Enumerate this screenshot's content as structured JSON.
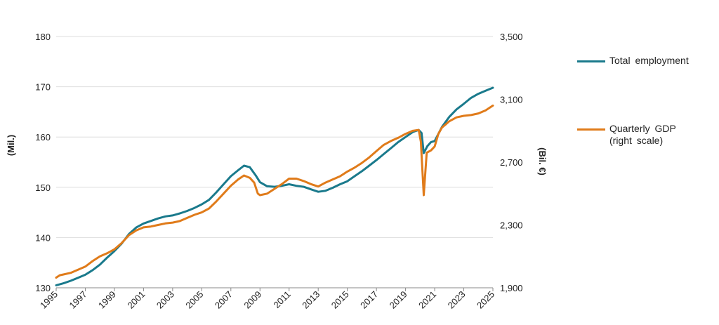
{
  "chart_data": {
    "type": "line",
    "title": "",
    "xlabel": "",
    "ylabel_left": "(Mil.)",
    "ylabel_right": "(Bil. €)",
    "x_ticks": [
      "1995",
      "1997",
      "1999",
      "2001",
      "2003",
      "2005",
      "2007",
      "2009",
      "2011",
      "2013",
      "2015",
      "2017",
      "2019",
      "2021",
      "2023",
      "2025"
    ],
    "y_left_ticks": [
      "130",
      "140",
      "150",
      "160",
      "170",
      "180"
    ],
    "y_right_ticks": [
      "1,900",
      "2,300",
      "2,700",
      "3,100",
      "3,500"
    ],
    "y_left_lim": [
      130,
      180
    ],
    "y_right_lim": [
      1900,
      3500
    ],
    "x_lim": [
      1995.0,
      2025.0
    ],
    "grid": true,
    "legend_position": "right",
    "series": [
      {
        "name": "Total employment",
        "axis": "left",
        "color": "#1a7a8c",
        "points": [
          [
            1995.0,
            130.5
          ],
          [
            1995.5,
            130.9
          ],
          [
            1996.0,
            131.4
          ],
          [
            1996.5,
            132.0
          ],
          [
            1997.0,
            132.6
          ],
          [
            1997.5,
            133.5
          ],
          [
            1998.0,
            134.6
          ],
          [
            1998.5,
            136.0
          ],
          [
            1999.0,
            137.3
          ],
          [
            1999.5,
            138.8
          ],
          [
            2000.0,
            140.7
          ],
          [
            2000.5,
            142.0
          ],
          [
            2001.0,
            142.8
          ],
          [
            2001.5,
            143.3
          ],
          [
            2002.0,
            143.8
          ],
          [
            2002.5,
            144.2
          ],
          [
            2003.0,
            144.4
          ],
          [
            2003.5,
            144.8
          ],
          [
            2004.0,
            145.3
          ],
          [
            2004.5,
            145.9
          ],
          [
            2005.0,
            146.6
          ],
          [
            2005.5,
            147.5
          ],
          [
            2006.0,
            149.0
          ],
          [
            2006.5,
            150.6
          ],
          [
            2007.0,
            152.2
          ],
          [
            2007.5,
            153.4
          ],
          [
            2007.9,
            154.3
          ],
          [
            2008.3,
            154.0
          ],
          [
            2008.7,
            152.4
          ],
          [
            2009.0,
            151.0
          ],
          [
            2009.5,
            150.2
          ],
          [
            2010.0,
            150.1
          ],
          [
            2010.5,
            150.3
          ],
          [
            2011.0,
            150.6
          ],
          [
            2011.5,
            150.3
          ],
          [
            2012.0,
            150.1
          ],
          [
            2012.5,
            149.6
          ],
          [
            2013.0,
            149.1
          ],
          [
            2013.5,
            149.3
          ],
          [
            2014.0,
            149.9
          ],
          [
            2014.5,
            150.6
          ],
          [
            2015.0,
            151.2
          ],
          [
            2015.5,
            152.2
          ],
          [
            2016.0,
            153.2
          ],
          [
            2016.5,
            154.3
          ],
          [
            2017.0,
            155.4
          ],
          [
            2017.5,
            156.6
          ],
          [
            2018.0,
            157.8
          ],
          [
            2018.5,
            159.0
          ],
          [
            2019.0,
            160.0
          ],
          [
            2019.5,
            161.0
          ],
          [
            2019.9,
            161.4
          ],
          [
            2020.1,
            160.8
          ],
          [
            2020.25,
            156.8
          ],
          [
            2020.5,
            158.2
          ],
          [
            2020.75,
            159.0
          ],
          [
            2021.0,
            159.2
          ],
          [
            2021.5,
            162.0
          ],
          [
            2022.0,
            164.0
          ],
          [
            2022.5,
            165.5
          ],
          [
            2023.0,
            166.6
          ],
          [
            2023.5,
            167.8
          ],
          [
            2024.0,
            168.6
          ],
          [
            2024.5,
            169.2
          ],
          [
            2025.0,
            169.8
          ]
        ]
      },
      {
        "name": "Quarterly GDP\n(right scale)",
        "axis": "right",
        "color": "#e07b1a",
        "points": [
          [
            1995.0,
            1965
          ],
          [
            1995.25,
            1980
          ],
          [
            1995.5,
            1985
          ],
          [
            1996.0,
            1995
          ],
          [
            1996.5,
            2015
          ],
          [
            1997.0,
            2035
          ],
          [
            1997.5,
            2070
          ],
          [
            1998.0,
            2100
          ],
          [
            1998.5,
            2120
          ],
          [
            1999.0,
            2145
          ],
          [
            1999.5,
            2185
          ],
          [
            2000.0,
            2235
          ],
          [
            2000.5,
            2265
          ],
          [
            2001.0,
            2285
          ],
          [
            2001.5,
            2290
          ],
          [
            2002.0,
            2300
          ],
          [
            2002.5,
            2310
          ],
          [
            2003.0,
            2315
          ],
          [
            2003.5,
            2325
          ],
          [
            2004.0,
            2345
          ],
          [
            2004.5,
            2365
          ],
          [
            2005.0,
            2380
          ],
          [
            2005.5,
            2405
          ],
          [
            2006.0,
            2450
          ],
          [
            2006.5,
            2500
          ],
          [
            2007.0,
            2550
          ],
          [
            2007.5,
            2590
          ],
          [
            2007.9,
            2615
          ],
          [
            2008.3,
            2600
          ],
          [
            2008.6,
            2570
          ],
          [
            2008.85,
            2500
          ],
          [
            2009.0,
            2490
          ],
          [
            2009.5,
            2500
          ],
          [
            2010.0,
            2530
          ],
          [
            2010.5,
            2560
          ],
          [
            2011.0,
            2595
          ],
          [
            2011.5,
            2595
          ],
          [
            2012.0,
            2580
          ],
          [
            2012.5,
            2560
          ],
          [
            2013.0,
            2545
          ],
          [
            2013.5,
            2570
          ],
          [
            2014.0,
            2590
          ],
          [
            2014.5,
            2610
          ],
          [
            2015.0,
            2640
          ],
          [
            2015.5,
            2665
          ],
          [
            2016.0,
            2695
          ],
          [
            2016.5,
            2730
          ],
          [
            2017.0,
            2770
          ],
          [
            2017.5,
            2810
          ],
          [
            2018.0,
            2835
          ],
          [
            2018.5,
            2855
          ],
          [
            2019.0,
            2880
          ],
          [
            2019.5,
            2900
          ],
          [
            2019.9,
            2905
          ],
          [
            2020.05,
            2830
          ],
          [
            2020.25,
            2490
          ],
          [
            2020.45,
            2760
          ],
          [
            2020.75,
            2775
          ],
          [
            2021.0,
            2800
          ],
          [
            2021.25,
            2880
          ],
          [
            2021.5,
            2920
          ],
          [
            2022.0,
            2960
          ],
          [
            2022.5,
            2985
          ],
          [
            2023.0,
            2995
          ],
          [
            2023.5,
            3000
          ],
          [
            2024.0,
            3010
          ],
          [
            2024.5,
            3030
          ],
          [
            2025.0,
            3060
          ]
        ]
      }
    ]
  }
}
